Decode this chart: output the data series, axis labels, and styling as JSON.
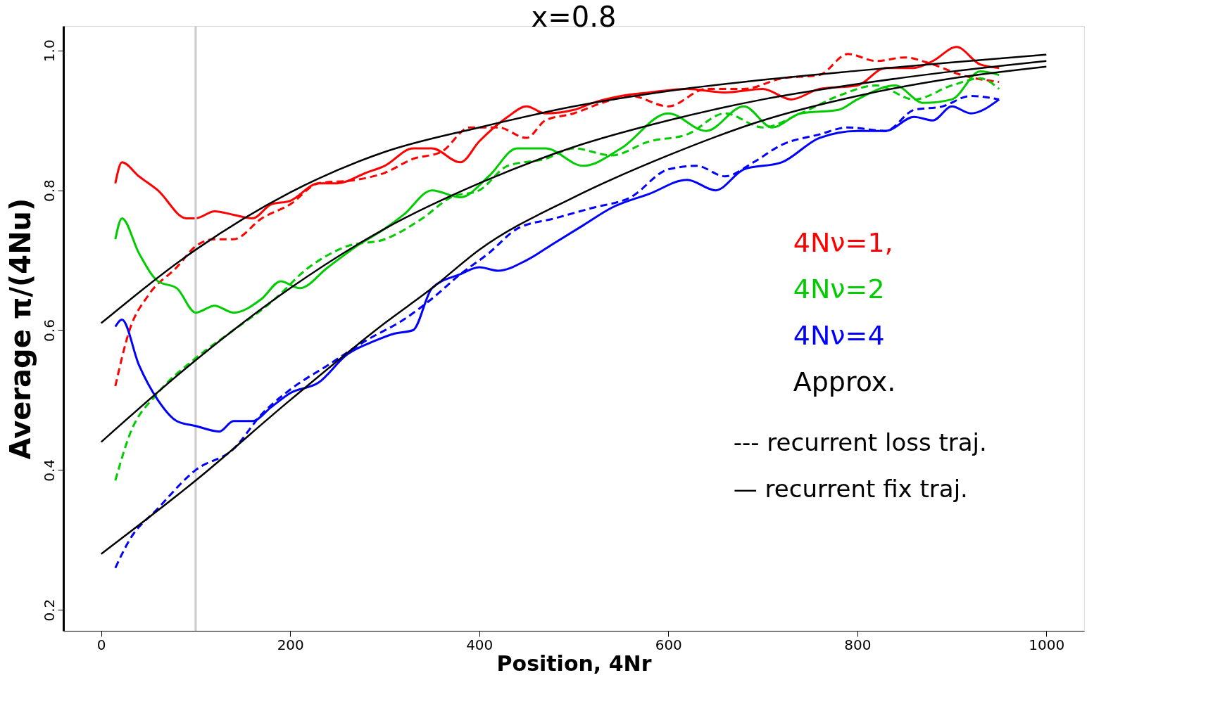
{
  "chart_data": {
    "type": "line",
    "title": "x=0.8",
    "xlabel": "Position, 4Nr",
    "ylabel": "Average   π/(4Nu)",
    "xlim": [
      -40,
      1040
    ],
    "ylim": [
      0.17,
      1.035
    ],
    "xticks": [
      0,
      200,
      400,
      600,
      800,
      1000
    ],
    "yticks": [
      0.2,
      0.4,
      0.6,
      0.8,
      {
        "value": 1,
        "label": "1.0"
      }
    ],
    "grid": false,
    "legend": "right",
    "ref_lines": [
      {
        "axis": "x",
        "value": 100,
        "color": "#cccccc"
      }
    ],
    "annotations": [
      "--- recurrent loss traj.",
      "— recurrent fix traj."
    ],
    "series": [
      {
        "name": "4Nν=1,",
        "color": "#ff0000",
        "line_style": "solid",
        "x": [
          15,
          22,
          40,
          60,
          90,
          100,
          120,
          140,
          160,
          180,
          200,
          230,
          250,
          280,
          300,
          330,
          350,
          380,
          400,
          430,
          450,
          470,
          500,
          520,
          550,
          580,
          620,
          660,
          700,
          730,
          760,
          800,
          830,
          860,
          880,
          905,
          930,
          950
        ],
        "values": [
          0.81,
          0.84,
          0.82,
          0.8,
          0.76,
          0.76,
          0.77,
          0.765,
          0.76,
          0.78,
          0.785,
          0.81,
          0.81,
          0.825,
          0.835,
          0.86,
          0.86,
          0.84,
          0.87,
          0.905,
          0.92,
          0.91,
          0.915,
          0.925,
          0.935,
          0.94,
          0.945,
          0.94,
          0.945,
          0.93,
          0.945,
          0.95,
          0.975,
          0.975,
          0.985,
          1.005,
          0.98,
          0.975
        ]
      },
      {
        "color": "#ff0000",
        "line_style": "dashed",
        "x": [
          15,
          30,
          50,
          80,
          100,
          120,
          140,
          170,
          200,
          230,
          270,
          300,
          330,
          360,
          390,
          420,
          450,
          470,
          500,
          530,
          560,
          600,
          640,
          680,
          720,
          760,
          790,
          820,
          850,
          880,
          910,
          950
        ],
        "values": [
          0.52,
          0.6,
          0.65,
          0.69,
          0.72,
          0.73,
          0.73,
          0.76,
          0.78,
          0.81,
          0.815,
          0.825,
          0.845,
          0.855,
          0.89,
          0.89,
          0.875,
          0.9,
          0.91,
          0.925,
          0.935,
          0.92,
          0.945,
          0.945,
          0.96,
          0.965,
          0.995,
          0.985,
          0.99,
          0.98,
          0.965,
          0.955
        ]
      },
      {
        "name": "4Nν=2",
        "color": "#00cc00",
        "line_style": "solid",
        "x": [
          15,
          22,
          40,
          60,
          80,
          100,
          120,
          140,
          170,
          190,
          210,
          240,
          270,
          300,
          320,
          350,
          380,
          410,
          440,
          470,
          510,
          550,
          600,
          640,
          680,
          710,
          740,
          780,
          800,
          840,
          870,
          900,
          930,
          950
        ],
        "values": [
          0.73,
          0.76,
          0.71,
          0.67,
          0.66,
          0.625,
          0.635,
          0.625,
          0.645,
          0.67,
          0.66,
          0.69,
          0.72,
          0.745,
          0.765,
          0.8,
          0.79,
          0.82,
          0.86,
          0.86,
          0.835,
          0.86,
          0.91,
          0.885,
          0.92,
          0.89,
          0.91,
          0.915,
          0.93,
          0.95,
          0.925,
          0.93,
          0.97,
          0.965
        ]
      },
      {
        "color": "#00cc00",
        "line_style": "dashed",
        "x": [
          15,
          30,
          60,
          100,
          140,
          180,
          220,
          260,
          300,
          340,
          370,
          400,
          430,
          470,
          500,
          540,
          580,
          620,
          660,
          700,
          740,
          780,
          820,
          860,
          900,
          930,
          950
        ],
        "values": [
          0.385,
          0.45,
          0.51,
          0.56,
          0.6,
          0.64,
          0.69,
          0.72,
          0.73,
          0.76,
          0.79,
          0.8,
          0.835,
          0.845,
          0.86,
          0.85,
          0.87,
          0.88,
          0.91,
          0.89,
          0.91,
          0.935,
          0.95,
          0.93,
          0.95,
          0.96,
          0.945
        ]
      },
      {
        "name": "4Nν=4",
        "color": "#0000ff",
        "line_style": "solid",
        "x": [
          15,
          22,
          40,
          60,
          80,
          100,
          125,
          140,
          160,
          180,
          200,
          230,
          260,
          290,
          310,
          330,
          350,
          380,
          400,
          420,
          450,
          480,
          510,
          540,
          580,
          620,
          650,
          680,
          720,
          760,
          800,
          830,
          860,
          880,
          900,
          920,
          950
        ],
        "values": [
          0.605,
          0.615,
          0.55,
          0.5,
          0.47,
          0.463,
          0.455,
          0.47,
          0.47,
          0.49,
          0.51,
          0.525,
          0.565,
          0.585,
          0.595,
          0.6,
          0.66,
          0.68,
          0.69,
          0.685,
          0.7,
          0.725,
          0.75,
          0.775,
          0.795,
          0.815,
          0.8,
          0.83,
          0.84,
          0.875,
          0.885,
          0.885,
          0.905,
          0.9,
          0.92,
          0.91,
          0.93
        ]
      },
      {
        "color": "#0000ff",
        "line_style": "dashed",
        "x": [
          15,
          30,
          60,
          100,
          140,
          170,
          200,
          240,
          280,
          320,
          350,
          380,
          410,
          440,
          480,
          520,
          560,
          600,
          630,
          660,
          690,
          720,
          760,
          790,
          830,
          860,
          890,
          920,
          950
        ],
        "values": [
          0.26,
          0.3,
          0.345,
          0.4,
          0.43,
          0.48,
          0.515,
          0.55,
          0.585,
          0.615,
          0.645,
          0.68,
          0.71,
          0.745,
          0.76,
          0.775,
          0.79,
          0.83,
          0.835,
          0.82,
          0.84,
          0.865,
          0.88,
          0.89,
          0.885,
          0.915,
          0.92,
          0.935,
          0.93
        ]
      },
      {
        "name": "Approx.",
        "color": "#000000",
        "line_style": "solid",
        "x": [
          0,
          100,
          200,
          300,
          400,
          500,
          600,
          700,
          800,
          900,
          1000
        ],
        "values": [
          0.61,
          0.715,
          0.797,
          0.855,
          0.89,
          0.92,
          0.942,
          0.958,
          0.971,
          0.983,
          0.994
        ]
      },
      {
        "color": "#000000",
        "line_style": "solid",
        "x": [
          0,
          100,
          200,
          300,
          400,
          500,
          600,
          700,
          800,
          900,
          1000
        ],
        "values": [
          0.44,
          0.557,
          0.66,
          0.745,
          0.81,
          0.862,
          0.9,
          0.93,
          0.952,
          0.97,
          0.985
        ]
      },
      {
        "color": "#000000",
        "line_style": "solid",
        "x": [
          0,
          100,
          200,
          300,
          350,
          400,
          500,
          600,
          700,
          800,
          900,
          1000
        ],
        "values": [
          0.28,
          0.385,
          0.5,
          0.61,
          0.66,
          0.715,
          0.79,
          0.85,
          0.9,
          0.935,
          0.96,
          0.977
        ]
      }
    ]
  }
}
